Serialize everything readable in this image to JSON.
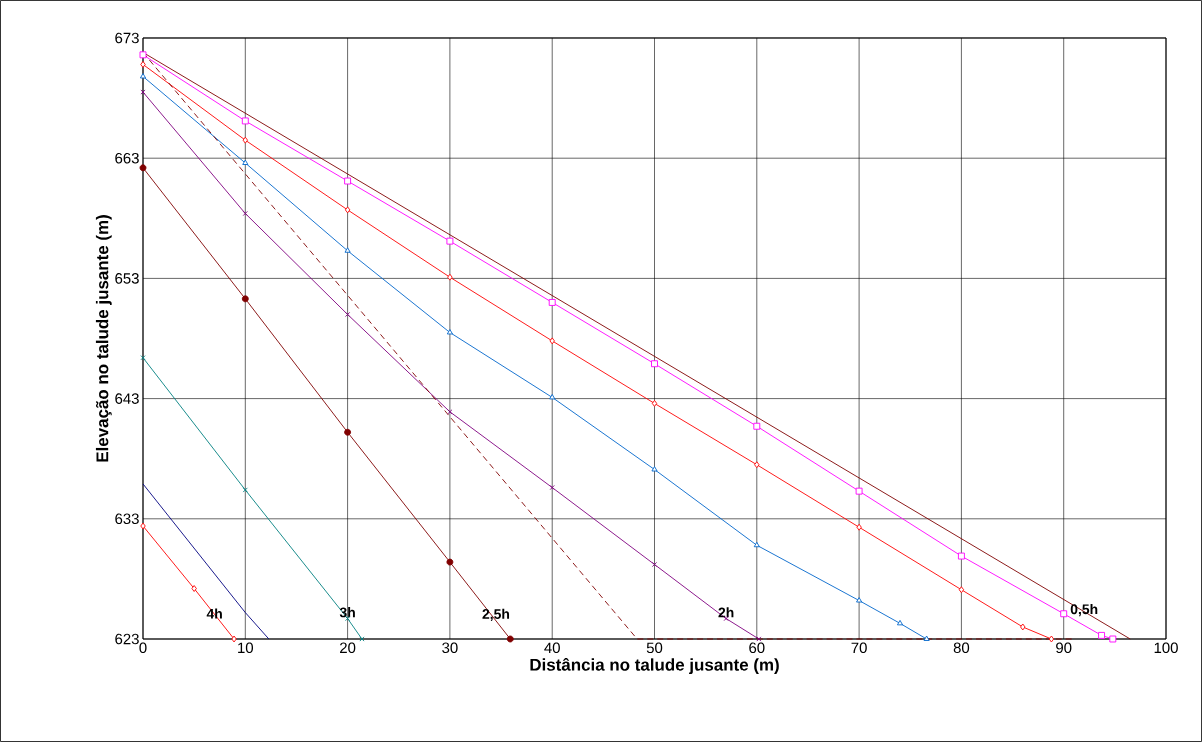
{
  "chart_data": {
    "type": "line",
    "xlabel": "Distância no talude jusante (m)",
    "ylabel": "Elevação no talude jusante (m)",
    "xlim": [
      0,
      100
    ],
    "ylim": [
      623,
      673
    ],
    "xticks": [
      0,
      10,
      20,
      30,
      40,
      50,
      60,
      70,
      80,
      90,
      100
    ],
    "yticks": [
      623,
      633,
      643,
      653,
      663,
      673
    ],
    "grid": true,
    "series": [
      {
        "color": "#800000",
        "marker": "none",
        "line_style": "solid",
        "x": [
          0,
          96.5
        ],
        "values": [
          671.8,
          623
        ]
      },
      {
        "color": "#ff00ff",
        "marker": "square",
        "line_style": "solid",
        "x": [
          0,
          10,
          20,
          30,
          40,
          50,
          60,
          70,
          80,
          90,
          93.7,
          94.8
        ],
        "values": [
          671.6,
          666.1,
          661.1,
          656.1,
          651.0,
          645.9,
          640.7,
          635.3,
          629.9,
          625.1,
          623.3,
          623
        ]
      },
      {
        "color": "#ff0000",
        "marker": "diamond",
        "line_style": "solid",
        "x": [
          0,
          10,
          20,
          30,
          40,
          50,
          60,
          70,
          80,
          86,
          88.8
        ],
        "values": [
          670.8,
          664.5,
          658.7,
          653.1,
          647.8,
          642.6,
          637.5,
          632.3,
          627.1,
          624,
          623
        ]
      },
      {
        "color": "#0066cc",
        "marker": "triangle",
        "line_style": "solid",
        "x": [
          0,
          10,
          20,
          30,
          40,
          50,
          60,
          70,
          74,
          76.6
        ],
        "values": [
          669.8,
          662.6,
          655.3,
          648.5,
          643.1,
          637.1,
          630.8,
          626.2,
          624.3,
          623
        ]
      },
      {
        "color": "#800080",
        "marker": "cross",
        "line_style": "solid",
        "x": [
          0,
          10,
          20,
          30,
          40,
          50,
          57,
          60.2
        ],
        "values": [
          668.5,
          658.4,
          650,
          641.9,
          635.6,
          629.2,
          624.7,
          623
        ]
      },
      {
        "color": "#800000",
        "marker": "none",
        "line_style": "dashed",
        "x": [
          0,
          48.3,
          91
        ],
        "values": [
          671.8,
          623,
          623
        ]
      },
      {
        "color": "#800000",
        "marker": "circle",
        "line_style": "solid",
        "x": [
          0,
          10,
          20,
          30,
          35.9
        ],
        "values": [
          662.2,
          651.3,
          640.2,
          629.4,
          623
        ]
      },
      {
        "color": "#008080",
        "marker": "cross",
        "line_style": "solid",
        "x": [
          0,
          10,
          20,
          21.4
        ],
        "values": [
          646.4,
          635.4,
          624.7,
          623
        ]
      },
      {
        "color": "#000080",
        "marker": "none",
        "line_style": "solid",
        "x": [
          0,
          10,
          12.3
        ],
        "values": [
          635.9,
          625.2,
          623
        ]
      },
      {
        "color": "#ff0000",
        "marker": "diamond",
        "line_style": "solid",
        "x": [
          0,
          5,
          8.9
        ],
        "values": [
          632.4,
          627.2,
          623
        ]
      }
    ],
    "annotations": [
      {
        "text": "4h",
        "x": 7,
        "y": 624.6
      },
      {
        "text": "3h",
        "x": 20,
        "y": 624.7
      },
      {
        "text": "2,5h",
        "x": 34.5,
        "y": 624.4
      },
      {
        "text": "2h",
        "x": 57,
        "y": 624.7
      },
      {
        "text": "0,5h",
        "x": 92,
        "y": 624.8
      }
    ]
  }
}
